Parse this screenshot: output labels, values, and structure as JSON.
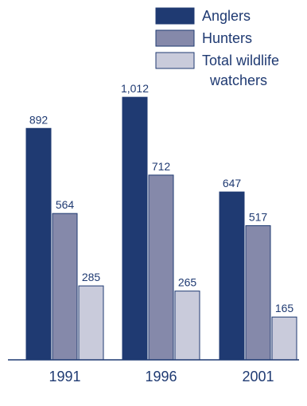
{
  "chart_data": {
    "type": "bar",
    "categories": [
      "1991",
      "1996",
      "2001"
    ],
    "series": [
      {
        "name": "Anglers",
        "values": [
          892,
          1012,
          647
        ],
        "labels": [
          "892",
          "1,012",
          "647"
        ],
        "color": "#1f3a72"
      },
      {
        "name": "Hunters",
        "values": [
          564,
          712,
          517
        ],
        "labels": [
          "564",
          "712",
          "517"
        ],
        "color": "#8589aa"
      },
      {
        "name": "Total wildlife watchers",
        "values": [
          285,
          265,
          165
        ],
        "labels": [
          "285",
          "265",
          "165"
        ],
        "color": "#c9cbdb"
      }
    ],
    "legend_lines": [
      [
        "Anglers"
      ],
      [
        "Hunters"
      ],
      [
        "Total wildlife",
        "watchers"
      ]
    ],
    "legend_position": "top-right",
    "ylim": [
      0,
      1080
    ],
    "grid": false,
    "axis_color": "#1f3a72",
    "text_color": "#1f3a72"
  }
}
